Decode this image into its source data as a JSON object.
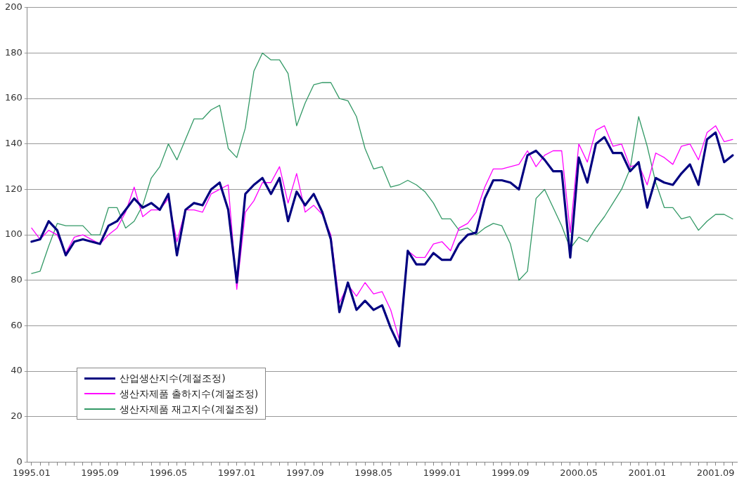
{
  "chart_data": {
    "type": "line",
    "categories": [
      "1995.01",
      null,
      null,
      null,
      null,
      null,
      null,
      null,
      "1995.09",
      null,
      null,
      null,
      null,
      null,
      null,
      null,
      "1996.05",
      null,
      null,
      null,
      null,
      null,
      null,
      null,
      "1997.01",
      null,
      null,
      null,
      null,
      null,
      null,
      null,
      "1997.09",
      null,
      null,
      null,
      null,
      null,
      null,
      null,
      "1998.05",
      null,
      null,
      null,
      null,
      null,
      null,
      null,
      "1999.01",
      null,
      null,
      null,
      null,
      null,
      null,
      null,
      "1999.09",
      null,
      null,
      null,
      null,
      null,
      null,
      null,
      "2000.05",
      null,
      null,
      null,
      null,
      null,
      null,
      null,
      "2001.01",
      null,
      null,
      null,
      null,
      null,
      null,
      null,
      "2001.09",
      null,
      null
    ],
    "series": [
      {
        "name": "산업생산지수(계절조정)",
        "color": "#000080",
        "values": [
          97,
          98,
          106,
          102,
          91,
          97,
          98,
          97,
          96,
          104,
          106,
          111,
          116,
          112,
          114,
          111,
          118,
          91,
          111,
          114,
          113,
          120,
          123,
          111,
          79,
          118,
          122,
          125,
          118,
          125,
          106,
          119,
          113,
          118,
          110,
          98,
          66,
          79,
          67,
          71,
          67,
          69,
          59,
          51,
          93,
          87,
          87,
          92,
          89,
          89,
          96,
          100,
          101,
          116,
          124,
          124,
          123,
          120,
          135,
          137,
          133,
          128,
          128,
          90,
          134,
          123,
          140,
          143,
          136,
          136,
          128,
          132,
          112,
          125,
          123,
          122,
          127,
          131,
          122,
          142,
          145,
          132,
          135
        ]
      },
      {
        "name": "생산자제품 출하지수(계절조정)",
        "color": "#ff00ff",
        "values": [
          103,
          98,
          102,
          100,
          92,
          99,
          100,
          98,
          96,
          100,
          103,
          110,
          121,
          108,
          111,
          111,
          116,
          97,
          111,
          111,
          110,
          118,
          120,
          122,
          76,
          110,
          115,
          123,
          123,
          130,
          114,
          127,
          110,
          113,
          109,
          100,
          70,
          78,
          73,
          79,
          74,
          75,
          67,
          54,
          93,
          90,
          90,
          96,
          97,
          93,
          103,
          105,
          110,
          121,
          129,
          129,
          130,
          131,
          137,
          130,
          135,
          137,
          137,
          101,
          140,
          132,
          146,
          148,
          139,
          140,
          130,
          131,
          122,
          136,
          134,
          131,
          139,
          140,
          133,
          145,
          148,
          141,
          142
        ]
      },
      {
        "name": "생산자제품 재고지수(계절조정)",
        "color": "#339966",
        "values": [
          83,
          84,
          95,
          105,
          104,
          104,
          104,
          100,
          100,
          112,
          112,
          103,
          106,
          113,
          125,
          130,
          140,
          133,
          142,
          151,
          151,
          155,
          157,
          138,
          134,
          147,
          172,
          180,
          177,
          177,
          171,
          148,
          158,
          166,
          167,
          167,
          160,
          159,
          152,
          138,
          129,
          130,
          121,
          122,
          124,
          122,
          119,
          114,
          107,
          107,
          102,
          103,
          100,
          103,
          105,
          104,
          96,
          80,
          84,
          116,
          120,
          112,
          104,
          94,
          99,
          97,
          103,
          108,
          114,
          120,
          129,
          152,
          139,
          123,
          112,
          112,
          107,
          108,
          102,
          106,
          109,
          109,
          107
        ]
      }
    ],
    "ylim": [
      0,
      200
    ],
    "yticks": [
      0,
      20,
      40,
      60,
      80,
      100,
      120,
      140,
      160,
      180,
      200
    ],
    "grid": "y",
    "legend": "bottom left",
    "marker": "none",
    "line_style": "solid"
  }
}
